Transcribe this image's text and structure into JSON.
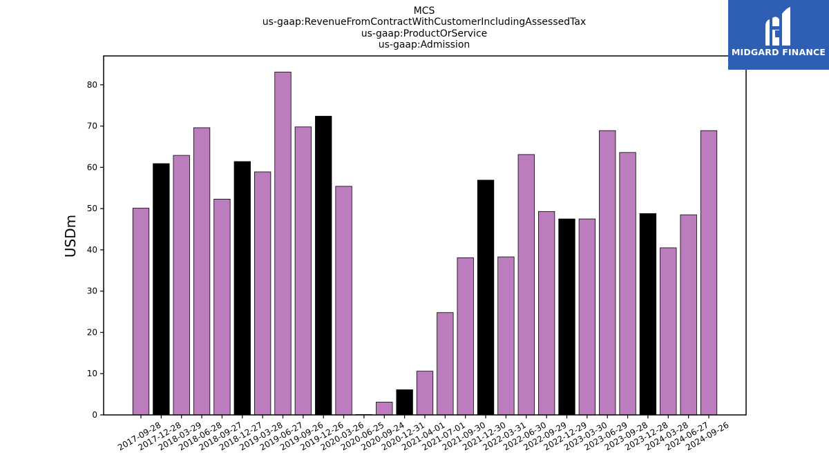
{
  "brand": {
    "name": "MIDGARD FINANCE",
    "background": "#2f5fb3"
  },
  "colors": {
    "quarterly_bar": "#bb7dbd",
    "annual_bar": "#000000",
    "bar_edge": "#000000"
  },
  "chart_data": {
    "type": "bar",
    "title_lines": [
      "MCS",
      "us-gaap:RevenueFromContractWithCustomerIncludingAssessedTax",
      "us-gaap:ProductOrService",
      "us-gaap:Admission"
    ],
    "xlabel": "",
    "ylabel": "USDm",
    "ylim": [
      0,
      87
    ],
    "yticks": [
      0,
      10,
      20,
      30,
      40,
      50,
      60,
      70,
      80
    ],
    "grid": false,
    "categories": [
      "2017-09-28",
      "2017-12-28",
      "2018-03-29",
      "2018-06-28",
      "2018-09-27",
      "2018-12-27",
      "2019-03-28",
      "2019-06-27",
      "2019-09-26",
      "2019-12-26",
      "2020-03-26",
      "2020-06-25",
      "2020-09-24",
      "2020-12-31",
      "2021-04-01",
      "2021-07-01",
      "2021-09-30",
      "2021-12-30",
      "2022-03-31",
      "2022-06-30",
      "2022-09-29",
      "2022-12-29",
      "2023-03-30",
      "2023-06-29",
      "2023-09-28",
      "2023-12-28",
      "2024-03-28",
      "2024-06-27",
      "2024-09-26"
    ],
    "values": [
      50.1,
      60.9,
      62.9,
      69.6,
      52.3,
      61.4,
      58.9,
      83.1,
      69.8,
      72.4,
      55.4,
      0.1,
      3.1,
      6.1,
      10.6,
      24.8,
      38.1,
      56.9,
      38.3,
      63.1,
      49.3,
      47.5,
      47.5,
      68.9,
      63.6,
      48.8,
      40.5,
      48.5,
      68.9
    ],
    "bar_kind": [
      "q",
      "a",
      "q",
      "q",
      "q",
      "a",
      "q",
      "q",
      "q",
      "a",
      "q",
      "q",
      "q",
      "a",
      "q",
      "q",
      "q",
      "a",
      "q",
      "q",
      "q",
      "a",
      "q",
      "q",
      "q",
      "a",
      "q",
      "q",
      "q"
    ]
  }
}
